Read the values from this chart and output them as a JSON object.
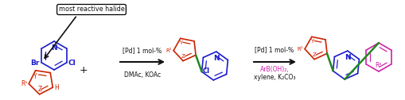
{
  "bg_color": "#ffffff",
  "colors": {
    "blue": "#1a1acc",
    "red": "#cc2200",
    "green": "#228822",
    "magenta": "#cc22aa",
    "black": "#111111"
  },
  "annotation_text": "most reactive halide",
  "reagent1_line1": "[Pd] 1 mol-%",
  "reagent1_line2": "DMAc, KOAc",
  "reagent2_line1": "[Pd] 1 mol-%",
  "reagent2_line2": "ArB(OH)₂,",
  "reagent2_line3": "xylene, K₂CO₃"
}
